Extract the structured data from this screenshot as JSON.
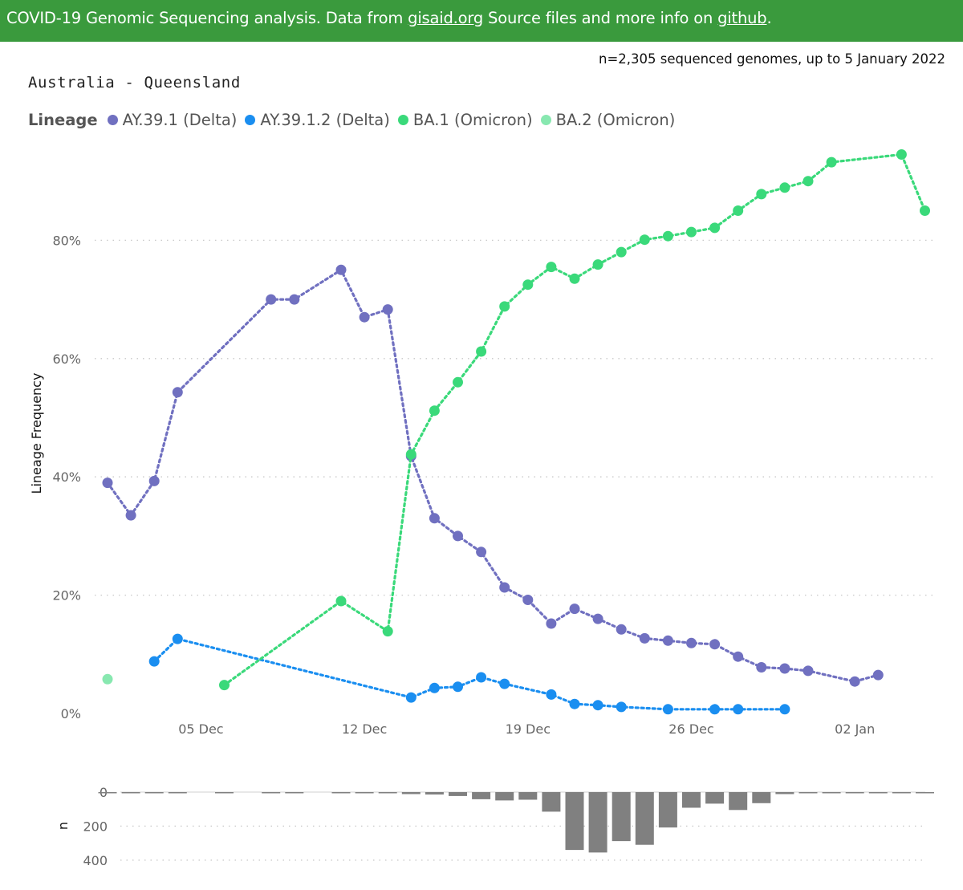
{
  "header": {
    "prefix": "COVID-19 Genomic Sequencing analysis. Data from ",
    "link1": "gisaid.org",
    "middle": " Source files and more info on ",
    "link2": "github",
    "suffix": "."
  },
  "subtitle": "n=2,305 sequenced genomes, up to 5 January 2022",
  "region_title": "Australia - Queensland",
  "colors": {
    "header_bg": "#3a9a3d",
    "grid": "#c8c8c8",
    "bars": "#808080"
  },
  "chart_data": [
    {
      "type": "line",
      "ylabel": "Lineage Frequency",
      "legend_title": "Lineage",
      "legend_position": "top-left",
      "grid": true,
      "ylim": [
        0,
        96
      ],
      "yticks": [
        0,
        20,
        40,
        60,
        80
      ],
      "ytick_labels": [
        "0%",
        "20%",
        "40%",
        "60%",
        "80%"
      ],
      "xlim": [
        "2021-11-30",
        "2022-01-06"
      ],
      "xticks": [
        "2021-12-05",
        "2021-12-12",
        "2021-12-19",
        "2021-12-26",
        "2022-01-02"
      ],
      "xtick_labels": [
        "05 Dec",
        "12 Dec",
        "19 Dec",
        "26 Dec",
        "02 Jan"
      ],
      "series": [
        {
          "name": "AY.39.1 (Delta)",
          "color": "#7070c0",
          "points": [
            [
              "2021-12-01",
              39
            ],
            [
              "2021-12-02",
              33.5
            ],
            [
              "2021-12-03",
              39.3
            ],
            [
              "2021-12-04",
              54.3
            ],
            [
              "2021-12-08",
              70
            ],
            [
              "2021-12-09",
              70
            ],
            [
              "2021-12-11",
              75
            ],
            [
              "2021-12-12",
              67
            ],
            [
              "2021-12-13",
              68.3
            ],
            [
              "2021-12-14",
              43.5
            ],
            [
              "2021-12-15",
              33
            ],
            [
              "2021-12-16",
              30
            ],
            [
              "2021-12-17",
              27.3
            ],
            [
              "2021-12-18",
              21.3
            ],
            [
              "2021-12-19",
              19.2
            ],
            [
              "2021-12-20",
              15.2
            ],
            [
              "2021-12-21",
              17.7
            ],
            [
              "2021-12-22",
              16
            ],
            [
              "2021-12-23",
              14.2
            ],
            [
              "2021-12-24",
              12.7
            ],
            [
              "2021-12-25",
              12.3
            ],
            [
              "2021-12-26",
              11.9
            ],
            [
              "2021-12-27",
              11.7
            ],
            [
              "2021-12-28",
              9.6
            ],
            [
              "2021-12-29",
              7.8
            ],
            [
              "2021-12-30",
              7.6
            ],
            [
              "2021-12-31",
              7.2
            ],
            [
              "2022-01-02",
              5.4
            ],
            [
              "2022-01-03",
              6.5
            ]
          ]
        },
        {
          "name": "AY.39.1.2 (Delta)",
          "color": "#1a8ef0",
          "points": [
            [
              "2021-12-03",
              8.8
            ],
            [
              "2021-12-04",
              12.6
            ],
            [
              "2021-12-14",
              2.7
            ],
            [
              "2021-12-15",
              4.3
            ],
            [
              "2021-12-16",
              4.5
            ],
            [
              "2021-12-17",
              6.1
            ],
            [
              "2021-12-18",
              5
            ],
            [
              "2021-12-20",
              3.2
            ],
            [
              "2021-12-21",
              1.6
            ],
            [
              "2021-12-22",
              1.4
            ],
            [
              "2021-12-23",
              1.1
            ],
            [
              "2021-12-25",
              0.7
            ],
            [
              "2021-12-27",
              0.7
            ],
            [
              "2021-12-28",
              0.7
            ],
            [
              "2021-12-30",
              0.7
            ]
          ]
        },
        {
          "name": "BA.1 (Omicron)",
          "color": "#3ad97a",
          "points": [
            [
              "2021-12-06",
              4.8
            ],
            [
              "2021-12-11",
              19
            ],
            [
              "2021-12-13",
              13.9
            ],
            [
              "2021-12-14",
              43.8
            ],
            [
              "2021-12-15",
              51.2
            ],
            [
              "2021-12-16",
              56
            ],
            [
              "2021-12-17",
              61.2
            ],
            [
              "2021-12-18",
              68.8
            ],
            [
              "2021-12-19",
              72.5
            ],
            [
              "2021-12-20",
              75.5
            ],
            [
              "2021-12-21",
              73.5
            ],
            [
              "2021-12-22",
              75.9
            ],
            [
              "2021-12-23",
              78
            ],
            [
              "2021-12-24",
              80.1
            ],
            [
              "2021-12-25",
              80.7
            ],
            [
              "2021-12-26",
              81.4
            ],
            [
              "2021-12-27",
              82.1
            ],
            [
              "2021-12-28",
              85
            ],
            [
              "2021-12-29",
              87.8
            ],
            [
              "2021-12-30",
              88.9
            ],
            [
              "2021-12-31",
              90
            ],
            [
              "2022-01-01",
              93.2
            ],
            [
              "2022-01-04",
              94.5
            ],
            [
              "2022-01-05",
              85
            ]
          ]
        },
        {
          "name": "BA.2 (Omicron)",
          "color": "#88e8b0",
          "points": [
            [
              "2021-12-01",
              5.8
            ]
          ]
        }
      ]
    },
    {
      "type": "bar",
      "ylabel": "n",
      "ylim": [
        0,
        420
      ],
      "yticks": [
        0,
        200,
        400
      ],
      "ytick_labels": [
        "0",
        "200",
        "400"
      ],
      "orientation": "downward",
      "dates": [
        "2021-12-01",
        "2021-12-02",
        "2021-12-03",
        "2021-12-04",
        "2021-12-06",
        "2021-12-08",
        "2021-12-09",
        "2021-12-11",
        "2021-12-12",
        "2021-12-13",
        "2021-12-14",
        "2021-12-15",
        "2021-12-16",
        "2021-12-17",
        "2021-12-18",
        "2021-12-19",
        "2021-12-20",
        "2021-12-21",
        "2021-12-22",
        "2021-12-23",
        "2021-12-24",
        "2021-12-25",
        "2021-12-26",
        "2021-12-27",
        "2021-12-28",
        "2021-12-29",
        "2021-12-30",
        "2021-12-31",
        "2022-01-01",
        "2022-01-02",
        "2022-01-03",
        "2022-01-04",
        "2022-01-05"
      ],
      "values": [
        4,
        4,
        4,
        4,
        3,
        4,
        4,
        4,
        4,
        4,
        12,
        14,
        23,
        42,
        49,
        45,
        115,
        340,
        355,
        288,
        310,
        208,
        92,
        68,
        105,
        65,
        12,
        4,
        4,
        4,
        4,
        4,
        4
      ]
    }
  ]
}
